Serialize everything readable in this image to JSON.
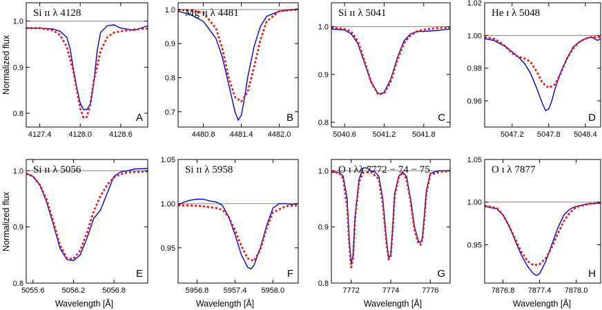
{
  "figure": {
    "ylabel": "Normalized flux",
    "xlabel": "Wavelength [Å]"
  },
  "style": {
    "observed_color": "#0000cc",
    "model_color": "#ee1111",
    "continuum_color": "#808080"
  },
  "chart_data": [
    {
      "type": "line",
      "letter": "A",
      "title": "Si ɪɪ λ 4128",
      "xlim": [
        4127.2,
        4129.0
      ],
      "ylim": [
        0.77,
        1.04
      ],
      "xticks": [
        4127.4,
        4128.0,
        4128.6
      ],
      "xtick_labels": [
        "4127.4",
        "4128.0",
        "4128.6"
      ],
      "yticks": [
        0.8,
        0.9,
        1.0
      ],
      "ytick_labels": [
        "0.8",
        "0.9",
        "1.0"
      ],
      "series": [
        {
          "role": "observed",
          "x": [
            4127.2,
            4127.4,
            4127.6,
            4127.7,
            4127.8,
            4127.85,
            4127.9,
            4127.95,
            4128.0,
            4128.05,
            4128.1,
            4128.15,
            4128.2,
            4128.25,
            4128.3,
            4128.4,
            4128.5,
            4128.6,
            4128.8,
            4129.0
          ],
          "y": [
            0.985,
            0.985,
            0.983,
            0.978,
            0.965,
            0.94,
            0.895,
            0.855,
            0.822,
            0.808,
            0.808,
            0.82,
            0.865,
            0.935,
            0.975,
            0.99,
            0.992,
            0.985,
            0.98,
            0.99
          ]
        },
        {
          "role": "model",
          "x": [
            4127.2,
            4127.4,
            4127.6,
            4127.7,
            4127.8,
            4127.9,
            4127.95,
            4128.0,
            4128.05,
            4128.1,
            4128.15,
            4128.2,
            4128.3,
            4128.4,
            4128.5,
            4128.6,
            4128.8,
            4129.0
          ],
          "y": [
            0.985,
            0.985,
            0.98,
            0.97,
            0.945,
            0.89,
            0.85,
            0.81,
            0.79,
            0.792,
            0.82,
            0.87,
            0.935,
            0.965,
            0.975,
            0.978,
            0.982,
            0.984
          ]
        }
      ]
    },
    {
      "type": "line",
      "letter": "B",
      "title": "Mg ɪɪ λ 4481",
      "xlim": [
        4480.4,
        4482.3
      ],
      "ylim": [
        0.655,
        1.02
      ],
      "xticks": [
        4480.8,
        4481.4,
        4482.0
      ],
      "xtick_labels": [
        "4480.8",
        "4481.4",
        "4482.0"
      ],
      "yticks": [
        0.7,
        0.8,
        0.9,
        1.0
      ],
      "ytick_labels": [
        "0.7",
        "0.8",
        "0.9",
        "1.0"
      ],
      "series": [
        {
          "role": "observed",
          "x": [
            4480.4,
            4480.6,
            4480.8,
            4481.0,
            4481.1,
            4481.2,
            4481.3,
            4481.35,
            4481.4,
            4481.45,
            4481.5,
            4481.6,
            4481.7,
            4481.8,
            4482.0,
            4482.2,
            4482.3
          ],
          "y": [
            0.995,
            0.985,
            0.965,
            0.915,
            0.86,
            0.78,
            0.7,
            0.675,
            0.69,
            0.74,
            0.8,
            0.89,
            0.95,
            0.98,
            0.995,
            1.0,
            1.002
          ]
        },
        {
          "role": "model",
          "x": [
            4480.4,
            4480.6,
            4480.8,
            4481.0,
            4481.1,
            4481.2,
            4481.3,
            4481.4,
            4481.5,
            4481.6,
            4481.7,
            4481.8,
            4482.0,
            4482.2,
            4482.3
          ],
          "y": [
            0.999,
            0.998,
            0.99,
            0.945,
            0.885,
            0.8,
            0.743,
            0.73,
            0.758,
            0.83,
            0.91,
            0.965,
            0.995,
            0.999,
            1.0
          ]
        }
      ]
    },
    {
      "type": "line",
      "letter": "C",
      "title": "Si ɪɪ λ 5041",
      "xlim": [
        5040.4,
        5042.2
      ],
      "ylim": [
        0.79,
        1.05
      ],
      "xticks": [
        5040.6,
        5041.2,
        5041.8
      ],
      "xtick_labels": [
        "5040.6",
        "5041.2",
        "5041.8"
      ],
      "yticks": [
        0.8,
        0.9,
        1.0
      ],
      "ytick_labels": [
        "0.8",
        "0.9",
        "1.0"
      ],
      "series": [
        {
          "role": "observed",
          "x": [
            5040.4,
            5040.6,
            5040.7,
            5040.8,
            5040.9,
            5041.0,
            5041.1,
            5041.15,
            5041.2,
            5041.3,
            5041.4,
            5041.5,
            5041.6,
            5041.7,
            5041.8,
            5042.0,
            5042.2
          ],
          "y": [
            0.995,
            0.993,
            0.985,
            0.965,
            0.925,
            0.885,
            0.862,
            0.858,
            0.863,
            0.89,
            0.935,
            0.97,
            0.985,
            0.99,
            0.99,
            0.992,
            0.995
          ]
        },
        {
          "role": "model",
          "x": [
            5040.4,
            5040.6,
            5040.7,
            5040.8,
            5040.9,
            5041.0,
            5041.1,
            5041.2,
            5041.3,
            5041.4,
            5041.5,
            5041.6,
            5041.7,
            5041.8,
            5042.0,
            5042.2
          ],
          "y": [
            0.998,
            0.995,
            0.99,
            0.97,
            0.93,
            0.885,
            0.86,
            0.86,
            0.885,
            0.93,
            0.965,
            0.982,
            0.99,
            0.994,
            0.997,
            0.998
          ]
        }
      ]
    },
    {
      "type": "line",
      "letter": "D",
      "title": "He ɪ λ 5048",
      "xlim": [
        5046.75,
        5048.65
      ],
      "ylim": [
        0.944,
        1.02
      ],
      "xticks": [
        5047.2,
        5047.8,
        5048.4
      ],
      "xtick_labels": [
        "5047.2",
        "5047.8",
        "5048.4"
      ],
      "yticks": [
        0.96,
        0.98,
        1.0,
        1.02
      ],
      "ytick_labels": [
        "0.96",
        "0.98",
        "1.00",
        "1.02"
      ],
      "series": [
        {
          "role": "observed",
          "x": [
            5046.75,
            5046.9,
            5047.0,
            5047.1,
            5047.2,
            5047.3,
            5047.4,
            5047.5,
            5047.6,
            5047.7,
            5047.75,
            5047.8,
            5047.85,
            5047.9,
            5048.0,
            5048.1,
            5048.2,
            5048.3,
            5048.4,
            5048.5,
            5048.6,
            5048.65
          ],
          "y": [
            0.998,
            0.997,
            0.995,
            0.993,
            0.99,
            0.987,
            0.983,
            0.977,
            0.968,
            0.958,
            0.954,
            0.955,
            0.96,
            0.967,
            0.978,
            0.986,
            0.993,
            0.996,
            0.998,
            0.999,
            0.997,
            0.998
          ]
        },
        {
          "role": "model",
          "x": [
            5046.75,
            5046.9,
            5047.0,
            5047.1,
            5047.2,
            5047.3,
            5047.4,
            5047.5,
            5047.6,
            5047.7,
            5047.8,
            5047.9,
            5048.0,
            5048.1,
            5048.2,
            5048.3,
            5048.4,
            5048.5,
            5048.65
          ],
          "y": [
            0.999,
            0.998,
            0.996,
            0.993,
            0.989,
            0.987,
            0.986,
            0.984,
            0.978,
            0.971,
            0.968,
            0.97,
            0.977,
            0.986,
            0.992,
            0.996,
            0.998,
            0.999,
            0.999
          ]
        }
      ]
    },
    {
      "type": "line",
      "letter": "E",
      "title": "Si ɪɪ λ 5056",
      "xlim": [
        5055.5,
        5057.3
      ],
      "ylim": [
        0.8,
        1.02
      ],
      "xticks": [
        5055.6,
        5056.2,
        5056.8
      ],
      "xtick_labels": [
        "5055.6",
        "5056.2",
        "5056.8"
      ],
      "yticks": [
        0.8,
        0.9,
        1.0
      ],
      "ytick_labels": [
        "0.8",
        "0.9",
        "1.0"
      ],
      "series": [
        {
          "role": "observed",
          "x": [
            5055.5,
            5055.6,
            5055.7,
            5055.8,
            5055.9,
            5056.0,
            5056.1,
            5056.2,
            5056.3,
            5056.4,
            5056.5,
            5056.6,
            5056.7,
            5056.8,
            5056.9,
            5057.0,
            5057.1,
            5057.3
          ],
          "y": [
            0.995,
            0.99,
            0.975,
            0.945,
            0.905,
            0.862,
            0.842,
            0.84,
            0.85,
            0.88,
            0.915,
            0.93,
            0.96,
            0.99,
            0.998,
            1.0,
            1.003,
            1.004
          ]
        },
        {
          "role": "model",
          "x": [
            5055.5,
            5055.6,
            5055.7,
            5055.8,
            5055.9,
            5056.0,
            5056.1,
            5056.2,
            5056.3,
            5056.4,
            5056.5,
            5056.6,
            5056.7,
            5056.8,
            5056.9,
            5057.0,
            5057.3
          ],
          "y": [
            0.995,
            0.99,
            0.975,
            0.95,
            0.91,
            0.868,
            0.845,
            0.843,
            0.858,
            0.89,
            0.928,
            0.955,
            0.975,
            0.988,
            0.994,
            0.997,
            0.999
          ]
        }
      ]
    },
    {
      "type": "line",
      "letter": "F",
      "title": "Si ɪɪ λ 5958",
      "xlim": [
        5956.5,
        5958.4
      ],
      "ylim": [
        0.91,
        1.05
      ],
      "xticks": [
        5956.8,
        5957.4,
        5958.0
      ],
      "xtick_labels": [
        "5956.8",
        "5957.4",
        "5958.0"
      ],
      "yticks": [
        0.95,
        1.0,
        1.05
      ],
      "ytick_labels": [
        "0.95",
        "1.00",
        "1.05"
      ],
      "series": [
        {
          "role": "observed",
          "x": [
            5956.5,
            5956.6,
            5956.7,
            5956.8,
            5956.9,
            5957.0,
            5957.1,
            5957.2,
            5957.3,
            5957.4,
            5957.5,
            5957.6,
            5957.65,
            5957.7,
            5957.8,
            5957.9,
            5958.0,
            5958.1,
            5958.2,
            5958.3,
            5958.4
          ],
          "y": [
            0.998,
            1.002,
            1.004,
            1.005,
            1.005,
            1.003,
            1.002,
            0.998,
            0.985,
            0.965,
            0.942,
            0.928,
            0.926,
            0.93,
            0.95,
            0.975,
            0.995,
            1.0,
            1.0,
            0.999,
            1.0
          ]
        },
        {
          "role": "model",
          "x": [
            5956.5,
            5956.7,
            5956.9,
            5957.0,
            5957.1,
            5957.2,
            5957.3,
            5957.4,
            5957.5,
            5957.6,
            5957.7,
            5957.8,
            5957.9,
            5958.0,
            5958.2,
            5958.4
          ],
          "y": [
            0.998,
            0.998,
            0.997,
            0.996,
            0.995,
            0.993,
            0.985,
            0.97,
            0.952,
            0.938,
            0.935,
            0.948,
            0.972,
            0.99,
            0.997,
            0.998
          ]
        }
      ]
    },
    {
      "type": "line",
      "letter": "G",
      "title": "O ɪ λλ 7772 − 74 − 75",
      "xlim": [
        7771.0,
        7777.0
      ],
      "ylim": [
        0.8,
        1.02
      ],
      "xticks": [
        7772,
        7774,
        7776
      ],
      "xtick_labels": [
        "7772",
        "7774",
        "7776"
      ],
      "yticks": [
        0.8,
        0.9,
        1.0
      ],
      "ytick_labels": [
        "0.8",
        "0.9",
        "1.0"
      ],
      "series": [
        {
          "role": "observed",
          "x": [
            7771.0,
            7771.4,
            7771.6,
            7771.8,
            7771.9,
            7772.0,
            7772.1,
            7772.2,
            7772.4,
            7772.6,
            7772.8,
            7773.0,
            7773.2,
            7773.4,
            7773.6,
            7773.8,
            7773.9,
            7774.0,
            7774.1,
            7774.2,
            7774.4,
            7774.6,
            7774.8,
            7775.0,
            7775.2,
            7775.4,
            7775.5,
            7775.6,
            7775.7,
            7775.8,
            7776.0,
            7776.2,
            7776.5,
            7777.0
          ],
          "y": [
            0.998,
            0.997,
            0.99,
            0.95,
            0.88,
            0.835,
            0.85,
            0.92,
            0.985,
            1.005,
            1.005,
            1.0,
            0.998,
            0.99,
            0.95,
            0.87,
            0.845,
            0.85,
            0.9,
            0.96,
            0.99,
            0.998,
            0.99,
            0.95,
            0.9,
            0.875,
            0.872,
            0.88,
            0.92,
            0.965,
            0.995,
            0.998,
            1.0,
            1.0
          ]
        },
        {
          "role": "model",
          "x": [
            7771.0,
            7771.4,
            7771.6,
            7771.8,
            7771.9,
            7772.0,
            7772.1,
            7772.2,
            7772.4,
            7772.6,
            7773.0,
            7773.4,
            7773.6,
            7773.8,
            7773.9,
            7774.0,
            7774.1,
            7774.2,
            7774.4,
            7774.6,
            7774.8,
            7775.0,
            7775.2,
            7775.4,
            7775.5,
            7775.6,
            7775.7,
            7775.8,
            7776.0,
            7776.5,
            7777.0
          ],
          "y": [
            0.998,
            0.996,
            0.985,
            0.935,
            0.87,
            0.828,
            0.845,
            0.915,
            0.98,
            0.996,
            0.998,
            0.985,
            0.94,
            0.865,
            0.842,
            0.848,
            0.895,
            0.955,
            0.988,
            0.997,
            0.985,
            0.945,
            0.895,
            0.87,
            0.868,
            0.878,
            0.915,
            0.96,
            0.993,
            0.998,
            0.999
          ]
        }
      ]
    },
    {
      "type": "line",
      "letter": "H",
      "title": "O ɪ λ 7877",
      "xlim": [
        7876.5,
        7878.4
      ],
      "ylim": [
        0.905,
        1.05
      ],
      "xticks": [
        7876.8,
        7877.4,
        7878.0
      ],
      "xtick_labels": [
        "7876.8",
        "7877.4",
        "7878.0"
      ],
      "yticks": [
        0.95,
        1.0,
        1.05
      ],
      "ytick_labels": [
        "0.95",
        "1.00",
        "1.05"
      ],
      "series": [
        {
          "role": "observed",
          "x": [
            7876.5,
            7876.7,
            7876.8,
            7876.9,
            7877.0,
            7877.1,
            7877.2,
            7877.3,
            7877.35,
            7877.4,
            7877.5,
            7877.6,
            7877.7,
            7877.8,
            7877.9,
            7878.0,
            7878.2,
            7878.4
          ],
          "y": [
            0.995,
            0.992,
            0.985,
            0.972,
            0.955,
            0.938,
            0.925,
            0.916,
            0.914,
            0.916,
            0.93,
            0.95,
            0.97,
            0.985,
            0.992,
            0.995,
            0.998,
            0.999
          ]
        },
        {
          "role": "model",
          "x": [
            7876.5,
            7876.7,
            7876.8,
            7876.9,
            7877.0,
            7877.1,
            7877.2,
            7877.3,
            7877.4,
            7877.5,
            7877.6,
            7877.7,
            7877.8,
            7877.9,
            7878.0,
            7878.2,
            7878.4
          ],
          "y": [
            0.996,
            0.993,
            0.985,
            0.972,
            0.957,
            0.942,
            0.931,
            0.926,
            0.927,
            0.934,
            0.947,
            0.963,
            0.978,
            0.988,
            0.994,
            0.998,
            0.999
          ]
        }
      ]
    }
  ]
}
